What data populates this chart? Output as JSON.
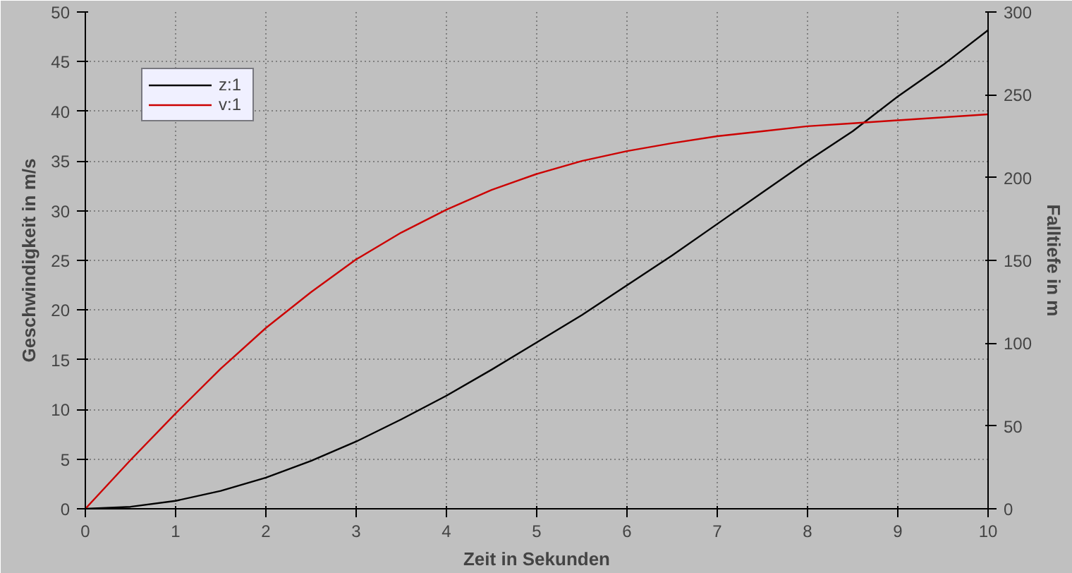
{
  "chart_data": {
    "type": "line",
    "xlabel": "Zeit in Sekunden",
    "ylabel": "Geschwindigkeit in m/s",
    "y2label": "Falltiefe in m",
    "x": [
      0,
      0.5,
      1,
      1.5,
      2,
      2.5,
      3,
      3.5,
      4,
      4.5,
      5,
      5.5,
      6,
      6.5,
      7,
      7.5,
      8,
      8.5,
      9,
      9.5,
      10
    ],
    "series": [
      {
        "name": "z:1",
        "color": "#000000",
        "axis": "y2",
        "values": [
          0,
          1.2,
          4.8,
          10.8,
          18.8,
          28.9,
          40.6,
          54,
          68.3,
          84,
          100.5,
          117,
          135,
          153,
          172,
          191,
          210,
          228,
          249,
          268,
          289
        ]
      },
      {
        "name": "v:1",
        "color": "#cc0000",
        "values": [
          0,
          4.9,
          9.6,
          14.1,
          18.2,
          21.8,
          25.1,
          27.8,
          30.1,
          32.1,
          33.7,
          35.0,
          36.0,
          36.8,
          37.5,
          38.0,
          38.5,
          38.8,
          39.1,
          39.4,
          39.7
        ]
      }
    ],
    "xlim": [
      0,
      10
    ],
    "xticks": [
      0,
      1,
      2,
      3,
      4,
      5,
      6,
      7,
      8,
      9,
      10
    ],
    "ylim": [
      0,
      50
    ],
    "yticks": [
      0,
      5,
      10,
      15,
      20,
      25,
      30,
      35,
      40,
      45,
      50
    ],
    "y2lim": [
      0,
      300
    ],
    "y2ticks": [
      0,
      50,
      100,
      150,
      200,
      250,
      300
    ],
    "grid": true,
    "legend": "top left",
    "line_style": "solid",
    "marker": "none"
  }
}
